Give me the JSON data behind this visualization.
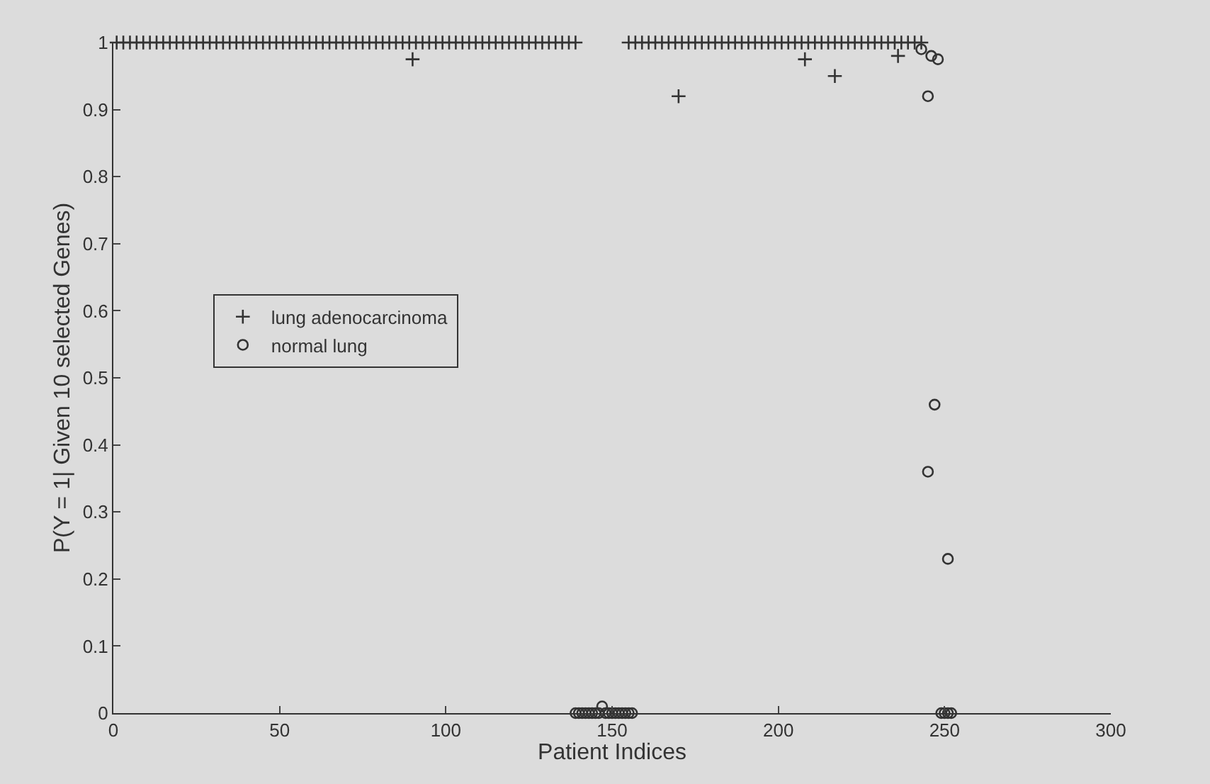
{
  "chart_data": {
    "type": "scatter",
    "xlabel": "Patient Indices",
    "ylabel": "P(Y = 1| Given 10 selected Genes)",
    "xlim": [
      0,
      300
    ],
    "xticks": [
      0,
      50,
      100,
      150,
      200,
      250,
      300
    ],
    "ylim": [
      0,
      1
    ],
    "yticks": [
      0,
      0.1,
      0.2,
      0.3,
      0.4,
      0.5,
      0.6,
      0.7,
      0.8,
      0.9,
      1
    ],
    "grid": false,
    "legend": "left",
    "series": [
      {
        "name": "lung adenocarcinoma",
        "color": "#333333",
        "marker": "cross",
        "x": [
          1,
          3,
          5,
          7,
          9,
          11,
          13,
          15,
          17,
          19,
          21,
          23,
          25,
          27,
          29,
          31,
          33,
          35,
          37,
          39,
          41,
          43,
          45,
          47,
          49,
          51,
          53,
          55,
          57,
          59,
          61,
          63,
          65,
          67,
          69,
          71,
          73,
          75,
          77,
          79,
          81,
          83,
          85,
          87,
          89,
          91,
          93,
          95,
          97,
          99,
          101,
          103,
          105,
          107,
          109,
          111,
          113,
          115,
          117,
          119,
          121,
          123,
          125,
          127,
          129,
          131,
          133,
          135,
          137,
          139,
          155,
          157,
          159,
          161,
          163,
          165,
          167,
          169,
          171,
          173,
          175,
          177,
          179,
          181,
          183,
          185,
          187,
          189,
          191,
          193,
          195,
          197,
          199,
          201,
          203,
          205,
          207,
          209,
          211,
          213,
          215,
          217,
          219,
          221,
          223,
          225,
          227,
          229,
          231,
          233,
          235,
          237,
          239,
          241,
          243,
          90,
          170,
          208,
          217,
          236
        ],
        "values": [
          1,
          1,
          1,
          1,
          1,
          1,
          1,
          1,
          1,
          1,
          1,
          1,
          1,
          1,
          1,
          1,
          1,
          1,
          1,
          1,
          1,
          1,
          1,
          1,
          1,
          1,
          1,
          1,
          1,
          1,
          1,
          1,
          1,
          1,
          1,
          1,
          1,
          1,
          1,
          1,
          1,
          1,
          1,
          1,
          1,
          1,
          1,
          1,
          1,
          1,
          1,
          1,
          1,
          1,
          1,
          1,
          1,
          1,
          1,
          1,
          1,
          1,
          1,
          1,
          1,
          1,
          1,
          1,
          1,
          1,
          1,
          1,
          1,
          1,
          1,
          1,
          1,
          1,
          1,
          1,
          1,
          1,
          1,
          1,
          1,
          1,
          1,
          1,
          1,
          1,
          1,
          1,
          1,
          1,
          1,
          1,
          1,
          1,
          1,
          1,
          1,
          1,
          1,
          1,
          1,
          1,
          1,
          1,
          1,
          1,
          1,
          1,
          1,
          1,
          1,
          0.975,
          0.92,
          0.975,
          0.95,
          0.98
        ]
      },
      {
        "name": "normal lung",
        "color": "#333333",
        "marker": "circle",
        "x": [
          139,
          140,
          141,
          142,
          143,
          144,
          145,
          146,
          147,
          148,
          149,
          150,
          151,
          152,
          153,
          154,
          155,
          156,
          243,
          245,
          245,
          246,
          247,
          248,
          249,
          250,
          251,
          251,
          252
        ],
        "values": [
          0,
          0,
          0,
          0,
          0,
          0,
          0,
          0,
          0.01,
          0,
          0,
          0,
          0,
          0,
          0,
          0,
          0,
          0,
          0.99,
          0.92,
          0.36,
          0.98,
          0.46,
          0.975,
          0,
          0,
          0.23,
          0,
          0
        ]
      }
    ]
  }
}
